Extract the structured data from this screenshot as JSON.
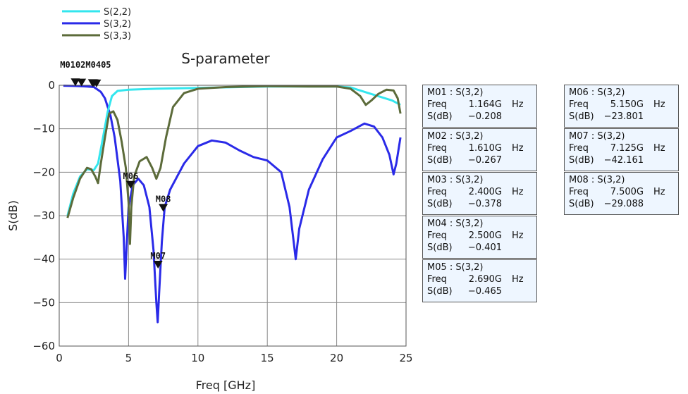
{
  "chart_data": {
    "type": "line",
    "title": "S-parameter",
    "xlabel": "Freq [GHz]",
    "ylabel": "S(dB)",
    "xlim": [
      0,
      25
    ],
    "ylim": [
      -60,
      0
    ],
    "xticks": [
      "0",
      "5",
      "10",
      "15",
      "20",
      "25"
    ],
    "yticks": [
      "0",
      "−10",
      "−20",
      "−30",
      "−40",
      "−50",
      "−60"
    ],
    "grid": true,
    "legend_position": "top-left, above plot",
    "series": [
      {
        "name": "S(2,2)",
        "color": "#33e6ee",
        "points": [
          [
            0.6,
            -30
          ],
          [
            1,
            -25
          ],
          [
            1.5,
            -21
          ],
          [
            2,
            -19.3
          ],
          [
            2.5,
            -19.5
          ],
          [
            2.8,
            -18
          ],
          [
            3.1,
            -13
          ],
          [
            3.5,
            -6
          ],
          [
            3.8,
            -2.5
          ],
          [
            4.2,
            -1.3
          ],
          [
            5,
            -1.0
          ],
          [
            7,
            -0.8
          ],
          [
            10,
            -0.6
          ],
          [
            13,
            -0.4
          ],
          [
            15,
            -0.3
          ],
          [
            17,
            -0.3
          ],
          [
            20,
            -0.3
          ],
          [
            21,
            -0.5
          ],
          [
            22,
            -1.5
          ],
          [
            23,
            -2.5
          ],
          [
            24,
            -3.5
          ],
          [
            24.6,
            -4.5
          ]
        ]
      },
      {
        "name": "S(3,2)",
        "color": "#2a2ae8",
        "points": [
          [
            0.3,
            -0.1
          ],
          [
            1,
            -0.15
          ],
          [
            1.5,
            -0.2
          ],
          [
            2,
            -0.3
          ],
          [
            2.5,
            -0.4
          ],
          [
            3,
            -1.5
          ],
          [
            3.3,
            -3
          ],
          [
            3.7,
            -7
          ],
          [
            4.0,
            -12
          ],
          [
            4.4,
            -22
          ],
          [
            4.65,
            -35
          ],
          [
            4.75,
            -44.5
          ],
          [
            4.85,
            -38
          ],
          [
            5.0,
            -28
          ],
          [
            5.3,
            -23
          ],
          [
            5.7,
            -21.5
          ],
          [
            6.1,
            -23
          ],
          [
            6.5,
            -28
          ],
          [
            6.8,
            -38
          ],
          [
            7.0,
            -50
          ],
          [
            7.1,
            -54.5
          ],
          [
            7.2,
            -48
          ],
          [
            7.4,
            -36
          ],
          [
            7.6,
            -28
          ],
          [
            8,
            -24
          ],
          [
            9,
            -18
          ],
          [
            10,
            -14
          ],
          [
            11,
            -12.7
          ],
          [
            12,
            -13.2
          ],
          [
            13,
            -15
          ],
          [
            14,
            -16.5
          ],
          [
            15,
            -17.3
          ],
          [
            16,
            -20
          ],
          [
            16.6,
            -28
          ],
          [
            16.9,
            -36
          ],
          [
            17.05,
            -40
          ],
          [
            17.3,
            -33
          ],
          [
            18,
            -24
          ],
          [
            19,
            -17
          ],
          [
            20,
            -12
          ],
          [
            21,
            -10.5
          ],
          [
            22,
            -8.8
          ],
          [
            22.7,
            -9.5
          ],
          [
            23.3,
            -12
          ],
          [
            23.8,
            -16
          ],
          [
            24.1,
            -20.5
          ],
          [
            24.3,
            -18
          ],
          [
            24.6,
            -12
          ]
        ]
      },
      {
        "name": "S(3,3)",
        "color": "#5c6b3a",
        "points": [
          [
            0.6,
            -30.5
          ],
          [
            1,
            -26
          ],
          [
            1.5,
            -21.5
          ],
          [
            2.0,
            -19
          ],
          [
            2.3,
            -19.3
          ],
          [
            2.6,
            -21
          ],
          [
            2.8,
            -22.5
          ],
          [
            3.0,
            -18
          ],
          [
            3.3,
            -12
          ],
          [
            3.6,
            -6.5
          ],
          [
            3.9,
            -6
          ],
          [
            4.2,
            -8
          ],
          [
            4.5,
            -13
          ],
          [
            4.8,
            -19
          ],
          [
            5.0,
            -27
          ],
          [
            5.1,
            -36.5
          ],
          [
            5.2,
            -28
          ],
          [
            5.4,
            -21
          ],
          [
            5.8,
            -17.5
          ],
          [
            6.3,
            -16.5
          ],
          [
            6.7,
            -19
          ],
          [
            7.0,
            -21.5
          ],
          [
            7.3,
            -19
          ],
          [
            7.7,
            -12
          ],
          [
            8.2,
            -5
          ],
          [
            9,
            -1.8
          ],
          [
            10,
            -0.8
          ],
          [
            12,
            -0.4
          ],
          [
            15,
            -0.2
          ],
          [
            18,
            -0.3
          ],
          [
            20,
            -0.3
          ],
          [
            21,
            -0.8
          ],
          [
            21.7,
            -2.5
          ],
          [
            22.1,
            -4.5
          ],
          [
            22.5,
            -3.5
          ],
          [
            23,
            -2
          ],
          [
            23.6,
            -1
          ],
          [
            24.1,
            -1.2
          ],
          [
            24.4,
            -3
          ],
          [
            24.6,
            -6.5
          ]
        ]
      }
    ],
    "markers": [
      {
        "id": "M01",
        "freq": 1.164,
        "db": -0.208
      },
      {
        "id": "M02",
        "freq": 1.61,
        "db": -0.267
      },
      {
        "id": "M03",
        "freq": 2.4,
        "db": -0.378
      },
      {
        "id": "M04",
        "freq": 2.5,
        "db": -0.401
      },
      {
        "id": "M05",
        "freq": 2.69,
        "db": -0.465
      },
      {
        "id": "M06",
        "freq": 5.15,
        "db": -23.801
      },
      {
        "id": "M07",
        "freq": 7.125,
        "db": -42.161
      },
      {
        "id": "M08",
        "freq": 7.5,
        "db": -29.088
      }
    ]
  },
  "marker_labels": {
    "overlap_top": "M0102M0405",
    "m06": "M06",
    "m07": "M07",
    "m08": "M08"
  },
  "marker_table": [
    {
      "title": "M01 : S(3,2)",
      "freq": "1.164G",
      "unit": "Hz",
      "db": "−0.208"
    },
    {
      "title": "M02 : S(3,2)",
      "freq": "1.610G",
      "unit": "Hz",
      "db": "−0.267"
    },
    {
      "title": "M03 : S(3,2)",
      "freq": "2.400G",
      "unit": "Hz",
      "db": "−0.378"
    },
    {
      "title": "M04 : S(3,2)",
      "freq": "2.500G",
      "unit": "Hz",
      "db": "−0.401"
    },
    {
      "title": "M05 : S(3,2)",
      "freq": "2.690G",
      "unit": "Hz",
      "db": "−0.465"
    },
    {
      "title": "M06 : S(3,2)",
      "freq": "5.150G",
      "unit": "Hz",
      "db": "−23.801"
    },
    {
      "title": "M07 : S(3,2)",
      "freq": "7.125G",
      "unit": "Hz",
      "db": "−42.161"
    },
    {
      "title": "M08 : S(3,2)",
      "freq": "7.500G",
      "unit": "Hz",
      "db": "−29.088"
    }
  ],
  "table_labels": {
    "freq": "Freq",
    "sdb": "S(dB)"
  }
}
